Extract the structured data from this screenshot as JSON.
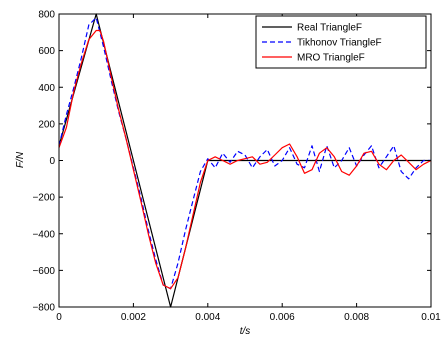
{
  "chart_data": {
    "type": "line",
    "xlabel": "t/s",
    "ylabel": "F/N",
    "xlim": [
      0,
      0.01
    ],
    "ylim": [
      -800,
      800
    ],
    "xticks": [
      0,
      0.002,
      0.004,
      0.006,
      0.008,
      0.01
    ],
    "xtick_labels": [
      "0",
      "0.002",
      "0.004",
      "0.006",
      "0.008",
      "0.01"
    ],
    "yticks": [
      -800,
      -600,
      -400,
      -200,
      0,
      200,
      400,
      600,
      800
    ],
    "ytick_labels": [
      "−800",
      "−600",
      "−400",
      "−200",
      "0",
      "200",
      "400",
      "600",
      "800"
    ],
    "grid": false,
    "legend_position": "top-right",
    "series": [
      {
        "name": "Real TriangleF",
        "color": "#000000",
        "style": "solid",
        "points": [
          [
            0,
            80
          ],
          [
            0.001,
            800
          ],
          [
            0.003,
            -800
          ],
          [
            0.004,
            0
          ],
          [
            0.01,
            0
          ]
        ]
      },
      {
        "name": "Tikhonov TriangleF",
        "color": "#0000ff",
        "style": "dashed",
        "points": [
          [
            0,
            80
          ],
          [
            0.0002,
            250
          ],
          [
            0.0004,
            400
          ],
          [
            0.0006,
            560
          ],
          [
            0.0008,
            740
          ],
          [
            0.001,
            780
          ],
          [
            0.0012,
            620
          ],
          [
            0.0014,
            440
          ],
          [
            0.0016,
            270
          ],
          [
            0.0018,
            120
          ],
          [
            0.002,
            -40
          ],
          [
            0.0022,
            -200
          ],
          [
            0.0024,
            -380
          ],
          [
            0.0026,
            -540
          ],
          [
            0.0028,
            -680
          ],
          [
            0.003,
            -700
          ],
          [
            0.0032,
            -560
          ],
          [
            0.0034,
            -380
          ],
          [
            0.0036,
            -220
          ],
          [
            0.0038,
            -60
          ],
          [
            0.004,
            10
          ],
          [
            0.0042,
            -40
          ],
          [
            0.0044,
            40
          ],
          [
            0.0046,
            -10
          ],
          [
            0.0048,
            50
          ],
          [
            0.005,
            30
          ],
          [
            0.0052,
            -40
          ],
          [
            0.0054,
            20
          ],
          [
            0.0056,
            60
          ],
          [
            0.0058,
            -30
          ],
          [
            0.006,
            0
          ],
          [
            0.0062,
            70
          ],
          [
            0.0064,
            -20
          ],
          [
            0.0066,
            -40
          ],
          [
            0.0068,
            80
          ],
          [
            0.007,
            -60
          ],
          [
            0.0072,
            80
          ],
          [
            0.0074,
            -40
          ],
          [
            0.0076,
            0
          ],
          [
            0.0078,
            70
          ],
          [
            0.008,
            -30
          ],
          [
            0.0082,
            30
          ],
          [
            0.0084,
            80
          ],
          [
            0.0086,
            -40
          ],
          [
            0.0088,
            20
          ],
          [
            0.009,
            80
          ],
          [
            0.0092,
            -60
          ],
          [
            0.0094,
            -100
          ],
          [
            0.0096,
            -40
          ],
          [
            0.0098,
            0
          ],
          [
            0.01,
            0
          ]
        ]
      },
      {
        "name": "MRO TriangleF",
        "color": "#ff0000",
        "style": "solid",
        "points": [
          [
            0,
            70
          ],
          [
            0.0002,
            180
          ],
          [
            0.0004,
            380
          ],
          [
            0.0006,
            530
          ],
          [
            0.0008,
            660
          ],
          [
            0.001,
            710
          ],
          [
            0.0011,
            710
          ],
          [
            0.0012,
            650
          ],
          [
            0.0014,
            460
          ],
          [
            0.0016,
            280
          ],
          [
            0.0018,
            120
          ],
          [
            0.002,
            -50
          ],
          [
            0.0022,
            -220
          ],
          [
            0.0024,
            -400
          ],
          [
            0.0026,
            -560
          ],
          [
            0.0028,
            -680
          ],
          [
            0.003,
            -700
          ],
          [
            0.0032,
            -640
          ],
          [
            0.0034,
            -480
          ],
          [
            0.0036,
            -300
          ],
          [
            0.0038,
            -120
          ],
          [
            0.004,
            0
          ],
          [
            0.0042,
            20
          ],
          [
            0.0044,
            0
          ],
          [
            0.0046,
            -20
          ],
          [
            0.0048,
            0
          ],
          [
            0.005,
            10
          ],
          [
            0.0052,
            20
          ],
          [
            0.0054,
            -20
          ],
          [
            0.0056,
            -10
          ],
          [
            0.0058,
            30
          ],
          [
            0.006,
            70
          ],
          [
            0.0062,
            90
          ],
          [
            0.0064,
            20
          ],
          [
            0.0066,
            -70
          ],
          [
            0.0068,
            -50
          ],
          [
            0.007,
            40
          ],
          [
            0.0072,
            70
          ],
          [
            0.0074,
            20
          ],
          [
            0.0076,
            -60
          ],
          [
            0.0078,
            -80
          ],
          [
            0.008,
            -30
          ],
          [
            0.0082,
            40
          ],
          [
            0.0084,
            50
          ],
          [
            0.0086,
            -20
          ],
          [
            0.0088,
            -50
          ],
          [
            0.009,
            0
          ],
          [
            0.0092,
            30
          ],
          [
            0.0094,
            -10
          ],
          [
            0.0096,
            -50
          ],
          [
            0.0098,
            -20
          ],
          [
            0.01,
            0
          ]
        ]
      }
    ]
  }
}
